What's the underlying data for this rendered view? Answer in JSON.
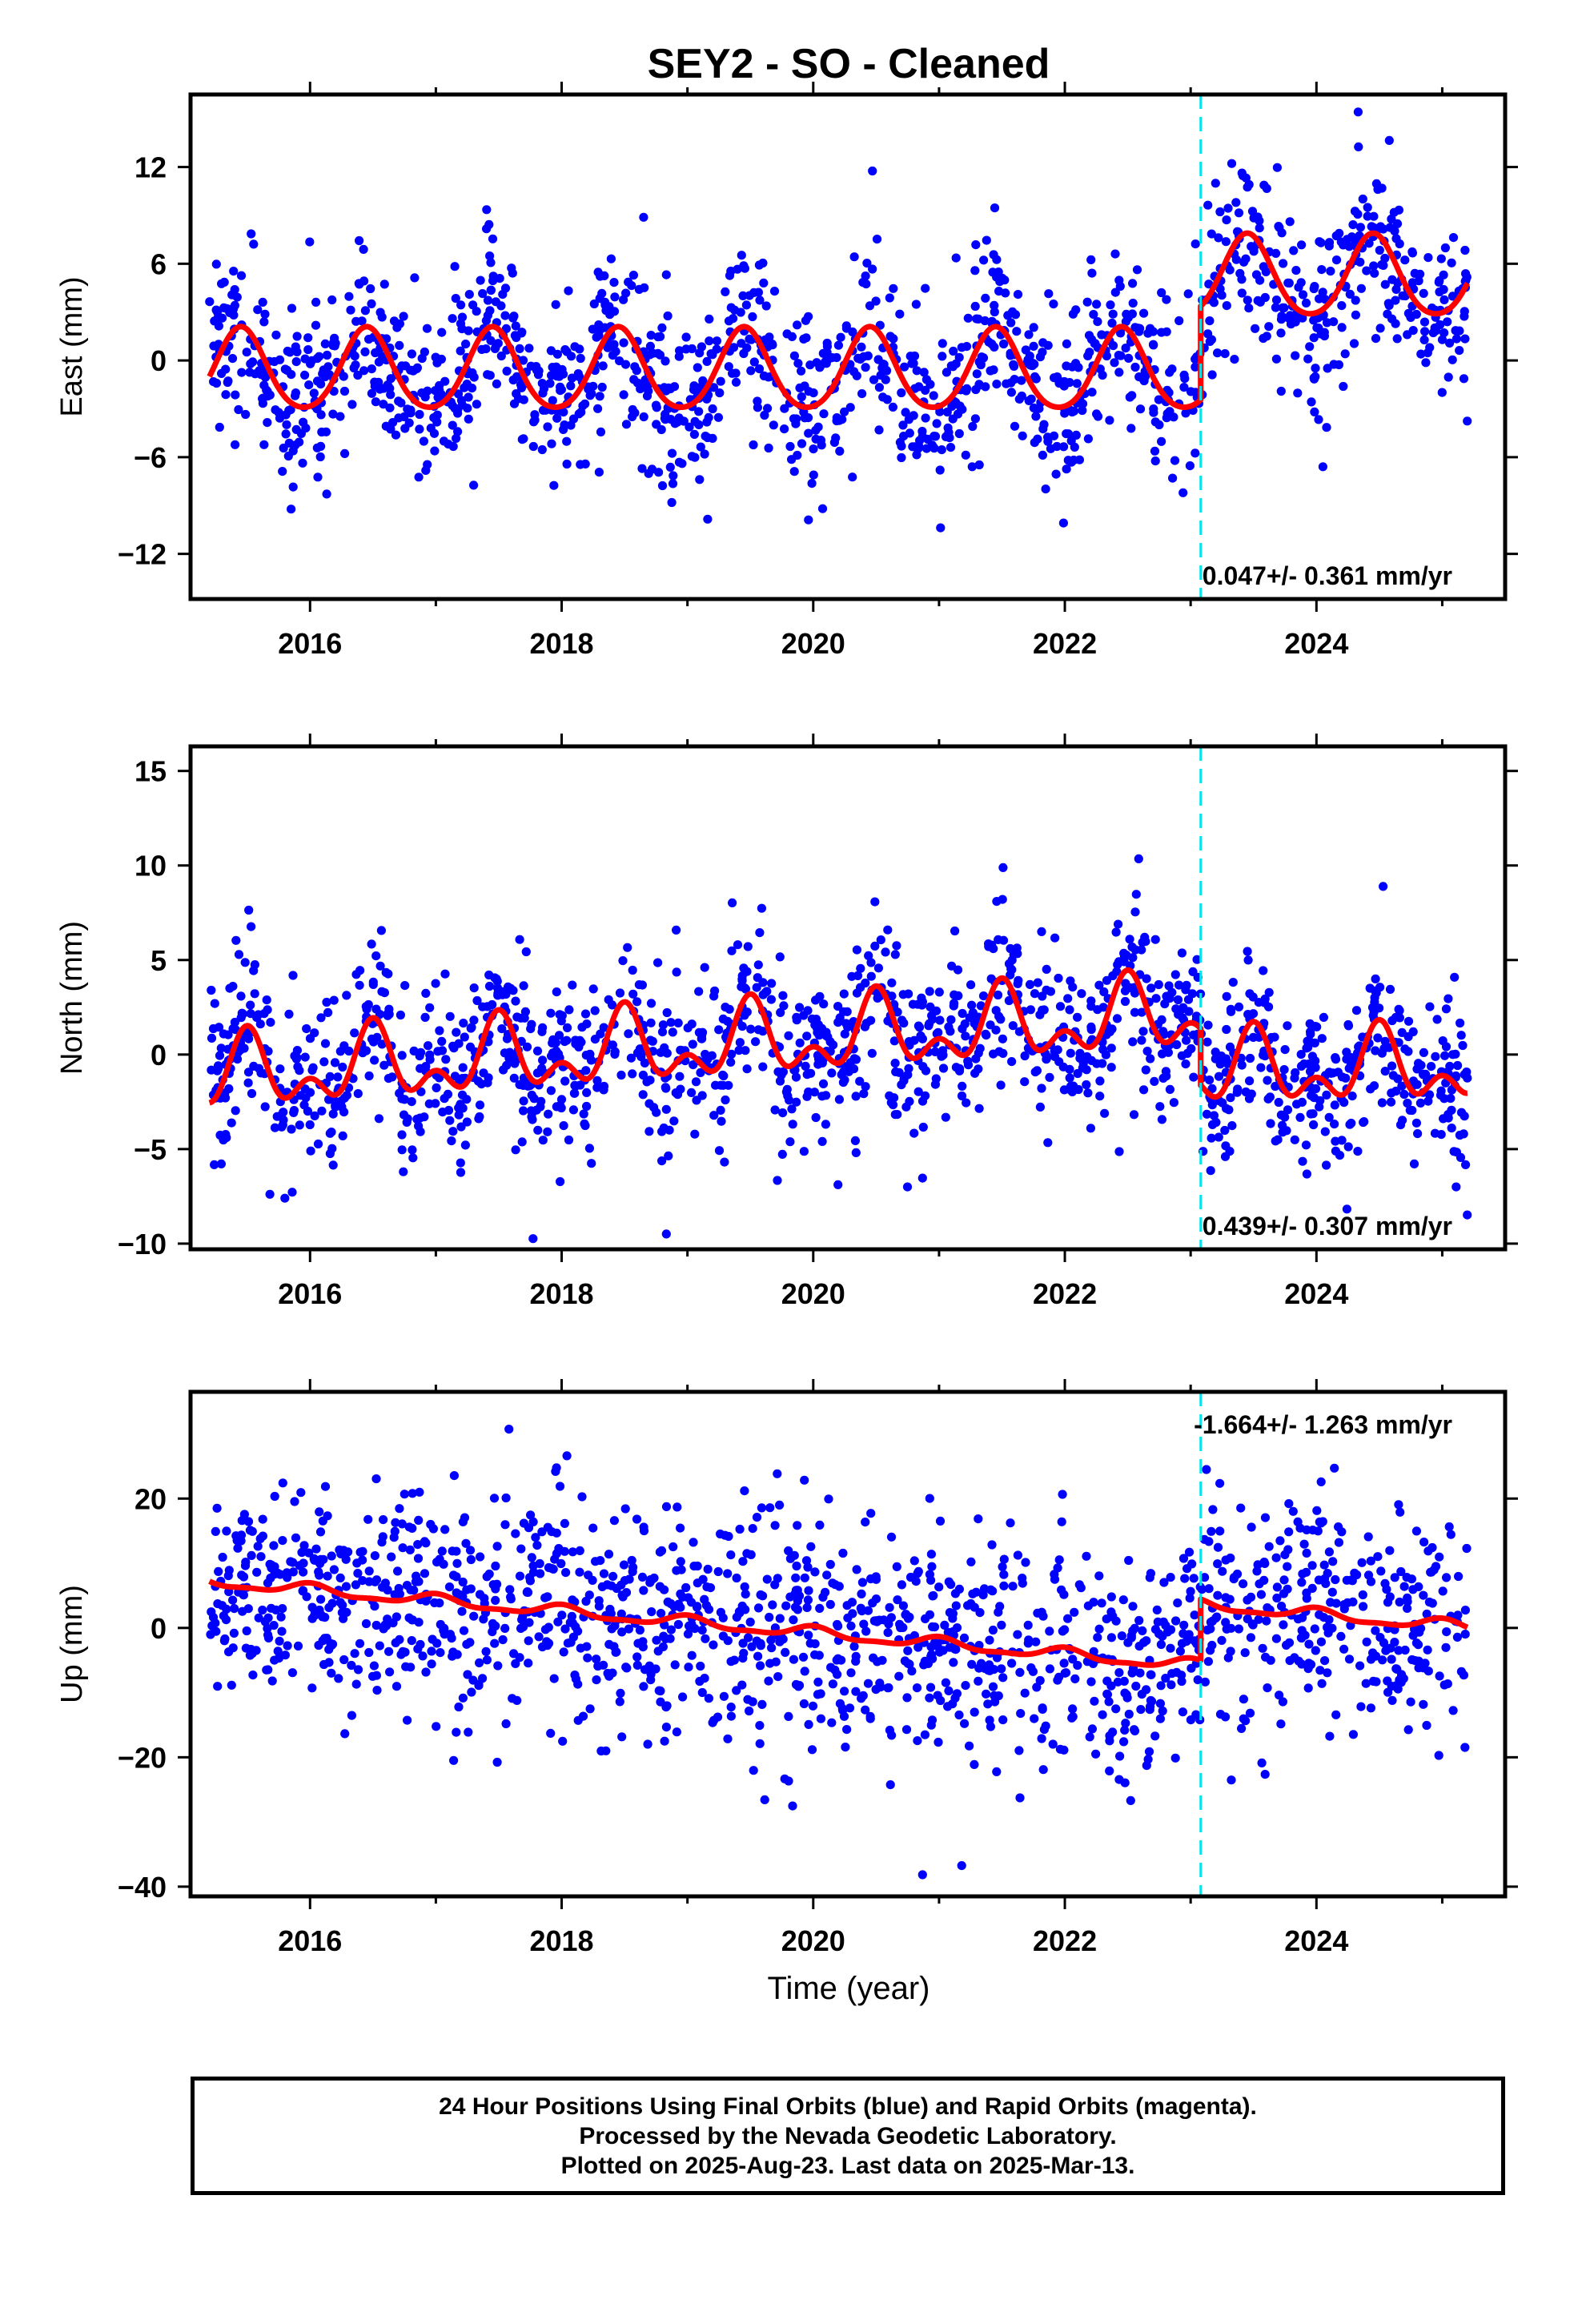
{
  "title": "SEY2  - SO - Cleaned",
  "footer": {
    "line1": "24 Hour Positions Using Final Orbits (blue) and Rapid Orbits (magenta).",
    "line2": "Processed by the Nevada Geodetic Laboratory.",
    "line3": "Plotted on 2025-Aug-23. Last data on 2025-Mar-13."
  },
  "colors": {
    "points": "#0000ff",
    "model": "#ff0000",
    "break": "#00e5ee",
    "frame": "#000000"
  },
  "chart_data": [
    {
      "type": "scatter",
      "ylabel": "East (mm)",
      "xlabel": "",
      "xlim": [
        2015.05,
        2025.5
      ],
      "ylim": [
        -14.8,
        16.5
      ],
      "xticks": [
        2016,
        2018,
        2020,
        2022,
        2024
      ],
      "yticks": [
        -12,
        -6,
        0,
        6,
        12
      ],
      "yticklabels": [
        "−12",
        "−6",
        "0",
        "6",
        "12"
      ],
      "rate_label": "0.047+/- 0.361 mm/yr",
      "rate_position": "bottom-right",
      "break_epoch": 2023.08,
      "data_range": [
        2015.2,
        2025.2
      ],
      "model": {
        "segments": [
          {
            "start": 2015.2,
            "end": 2023.08,
            "offset": -0.7,
            "annual_amp": 2.5,
            "annual_phase": 2015.45,
            "semiannual_amp": 0.3
          },
          {
            "start": 2023.08,
            "end": 2025.2,
            "offset": 5.1,
            "annual_amp": 2.5,
            "annual_phase": 2015.45,
            "semiannual_amp": 0.3
          }
        ]
      },
      "scatter_sigma": 2.6,
      "point_count": 1500
    },
    {
      "type": "scatter",
      "ylabel": "North (mm)",
      "xlabel": "",
      "xlim": [
        2015.05,
        2025.5
      ],
      "ylim": [
        -10.3,
        16.3
      ],
      "xticks": [
        2016,
        2018,
        2020,
        2022,
        2024
      ],
      "yticks": [
        -10,
        -5,
        0,
        5,
        10,
        15
      ],
      "yticklabels": [
        "−10",
        "−5",
        "0",
        "5",
        "10",
        "15"
      ],
      "rate_label": "0.439+/- 0.307 mm/yr",
      "rate_position": "bottom-right",
      "break_epoch": 2023.08,
      "data_range": [
        2015.2,
        2025.2
      ],
      "model": {
        "segments": [
          {
            "start": 2015.2,
            "end": 2023.08,
            "offset": -1.2,
            "trend": 0.42,
            "annual_amp": 1.5,
            "annual_phase": 2015.5,
            "semiannual_amp": 1.1
          },
          {
            "start": 2023.08,
            "end": 2025.2,
            "offset": -0.9,
            "trend": 0.1,
            "annual_amp": 1.5,
            "annual_phase": 2015.5,
            "semiannual_amp": 1.1
          }
        ]
      },
      "scatter_sigma": 2.2,
      "point_count": 1500
    },
    {
      "type": "scatter",
      "ylabel": "Up (mm)",
      "xlabel": "Time (year)",
      "xlim": [
        2015.05,
        2025.5
      ],
      "ylim": [
        -41.5,
        36.5
      ],
      "xticks": [
        2016,
        2018,
        2020,
        2022,
        2024
      ],
      "yticks": [
        -40,
        -20,
        0,
        20
      ],
      "yticklabels": [
        "−40",
        "−20",
        "0",
        "20"
      ],
      "rate_label": "-1.664+/- 1.263 mm/yr",
      "rate_position": "top-right",
      "break_epoch": 2023.08,
      "data_range": [
        2015.2,
        2025.2
      ],
      "model": {
        "segments": [
          {
            "start": 2015.2,
            "end": 2023.08,
            "offset": 7.2,
            "trend": -1.66,
            "annual_amp": 0.8,
            "annual_phase": 2016.0,
            "semiannual_amp": 0.3
          },
          {
            "start": 2023.08,
            "end": 2025.2,
            "offset": 3.6,
            "trend": -1.66,
            "annual_amp": 0.8,
            "annual_phase": 2016.0,
            "semiannual_amp": 0.3
          }
        ]
      },
      "scatter_sigma": 8.5,
      "point_count": 1500
    }
  ]
}
